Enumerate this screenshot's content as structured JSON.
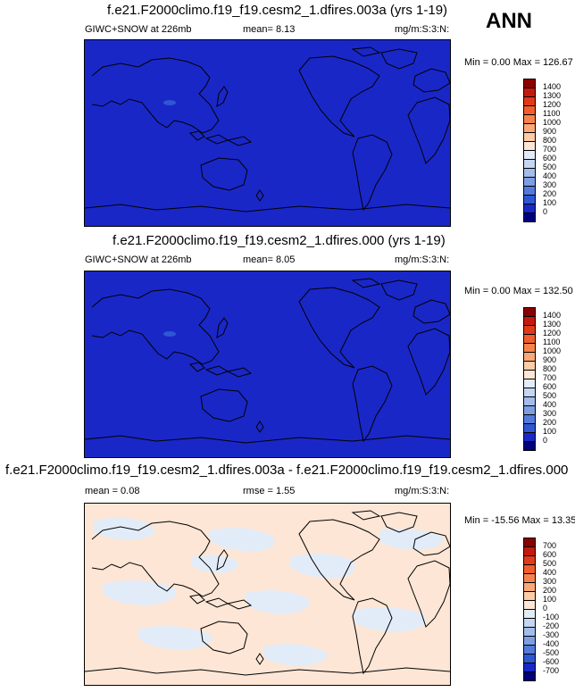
{
  "header": {
    "season": "ANN"
  },
  "panels": [
    {
      "title": "f.e21.F2000climo.f19_f19.cesm2_1.dfires.003a (yrs 1-19)",
      "left_text": "GIWC+SNOW at 226mb",
      "mid_text": "mean=  8.13",
      "units": "mg/m:S:3:N:",
      "minmax": "Min =  0.00 Max = 126.67",
      "fill_color": "#1a27c7",
      "colorbar_labels": [
        "1400",
        "1300",
        "1200",
        "1100",
        "1000",
        "900",
        "800",
        "700",
        "600",
        "500",
        "400",
        "300",
        "200",
        "100",
        "0"
      ],
      "colorbar_colors": [
        "#8b0000",
        "#c41a0e",
        "#e03a1a",
        "#f15d2c",
        "#f7834c",
        "#fba878",
        "#fdcba6",
        "#fde6d6",
        "#e2ecf8",
        "#c5d6f2",
        "#a3bdea",
        "#7d9ee2",
        "#547adb",
        "#2f57d3",
        "#1a27c7",
        "#00007c"
      ]
    },
    {
      "title": "f.e21.F2000climo.f19_f19.cesm2_1.dfires.000 (yrs 1-19)",
      "left_text": "GIWC+SNOW at 226mb",
      "mid_text": "mean=  8.05",
      "units": "mg/m:S:3:N:",
      "minmax": "Min =  0.00 Max = 132.50",
      "fill_color": "#1a27c7",
      "colorbar_labels": [
        "1400",
        "1300",
        "1200",
        "1100",
        "1000",
        "900",
        "800",
        "700",
        "600",
        "500",
        "400",
        "300",
        "200",
        "100",
        "0"
      ],
      "colorbar_colors": [
        "#8b0000",
        "#c41a0e",
        "#e03a1a",
        "#f15d2c",
        "#f7834c",
        "#fba878",
        "#fdcba6",
        "#fde6d6",
        "#e2ecf8",
        "#c5d6f2",
        "#a3bdea",
        "#7d9ee2",
        "#547adb",
        "#2f57d3",
        "#1a27c7",
        "#00007c"
      ]
    },
    {
      "title": "f.e21.F2000climo.f19_f19.cesm2_1.dfires.003a - f.e21.F2000climo.f19_f19.cesm2_1.dfires.000",
      "left_text": "mean =  0.08",
      "mid_text": "rmse =  1.55",
      "units": "mg/m:S:3:N:",
      "minmax": "Min = -15.56 Max = 13.35",
      "fill_color": "#fde6d6",
      "colorbar_labels": [
        "700",
        "600",
        "500",
        "400",
        "300",
        "200",
        "100",
        "0",
        "-100",
        "-200",
        "-300",
        "-400",
        "-500",
        "-600",
        "-700"
      ],
      "colorbar_colors": [
        "#8b0000",
        "#c41a0e",
        "#e03a1a",
        "#f15d2c",
        "#f7834c",
        "#fba878",
        "#fdcba6",
        "#fde6d6",
        "#e2ecf8",
        "#c5d6f2",
        "#a3bdea",
        "#7d9ee2",
        "#547adb",
        "#2f57d3",
        "#1a27c7",
        "#00007c"
      ]
    }
  ],
  "chart_data": [
    {
      "type": "heatmap",
      "title": "f.e21.F2000climo.f19_f19.cesm2_1.dfires.003a (yrs 1-19)",
      "variable": "GIWC+SNOW at 226mb",
      "mean": 8.13,
      "min": 0.0,
      "max": 126.67,
      "units": "mg/m:S:3:N:",
      "levels": [
        0,
        100,
        200,
        300,
        400,
        500,
        600,
        700,
        800,
        900,
        1000,
        1100,
        1200,
        1300,
        1400
      ]
    },
    {
      "type": "heatmap",
      "title": "f.e21.F2000climo.f19_f19.cesm2_1.dfires.000 (yrs 1-19)",
      "variable": "GIWC+SNOW at 226mb",
      "mean": 8.05,
      "min": 0.0,
      "max": 132.5,
      "units": "mg/m:S:3:N:",
      "levels": [
        0,
        100,
        200,
        300,
        400,
        500,
        600,
        700,
        800,
        900,
        1000,
        1100,
        1200,
        1300,
        1400
      ]
    },
    {
      "type": "heatmap",
      "title": "f.e21.F2000climo.f19_f19.cesm2_1.dfires.003a - f.e21.F2000climo.f19_f19.cesm2_1.dfires.000",
      "mean": 0.08,
      "rmse": 1.55,
      "min": -15.56,
      "max": 13.35,
      "units": "mg/m:S:3:N:",
      "levels": [
        -700,
        -600,
        -500,
        -400,
        -300,
        -200,
        -100,
        0,
        100,
        200,
        300,
        400,
        500,
        600,
        700
      ]
    }
  ]
}
